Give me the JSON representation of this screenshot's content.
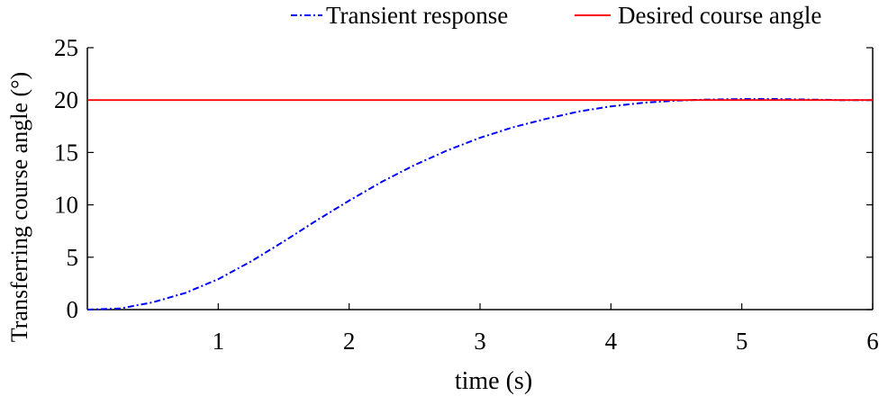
{
  "chart_data": {
    "type": "line",
    "xlabel": "time (s)",
    "ylabel": "Transferring course angle (°)",
    "xlim": [
      0,
      6
    ],
    "ylim": [
      0,
      25
    ],
    "x_ticks": [
      "1",
      "2",
      "3",
      "4",
      "5",
      "6"
    ],
    "y_ticks": [
      "0",
      "5",
      "10",
      "15",
      "20",
      "25"
    ],
    "grid": false,
    "legend_position": "top",
    "series": [
      {
        "name": "Transient response",
        "color": "#0000ff",
        "style": "dash-dot",
        "x": [
          0,
          0.25,
          0.5,
          0.75,
          1.0,
          1.25,
          1.5,
          1.75,
          2.0,
          2.25,
          2.5,
          2.75,
          3.0,
          3.25,
          3.5,
          3.75,
          4.0,
          4.25,
          4.5,
          4.75,
          5.0,
          5.25,
          5.5,
          5.75,
          6.0
        ],
        "values": [
          0,
          0.1,
          0.7,
          1.6,
          2.9,
          4.6,
          6.5,
          8.5,
          10.4,
          12.2,
          13.8,
          15.2,
          16.4,
          17.4,
          18.2,
          18.9,
          19.4,
          19.75,
          19.95,
          20.05,
          20.1,
          20.1,
          20.05,
          20.0,
          20.0
        ]
      },
      {
        "name": "Desired course angle",
        "color": "#ff0000",
        "style": "solid",
        "x": [
          0,
          6
        ],
        "values": [
          20,
          20
        ]
      }
    ]
  }
}
